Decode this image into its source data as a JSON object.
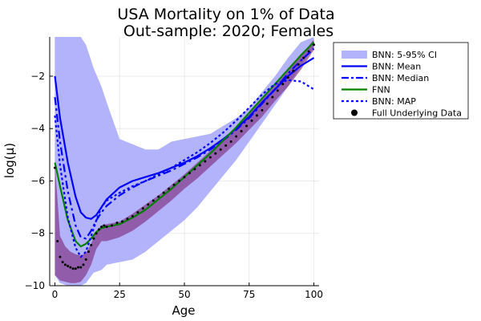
{
  "chart_data": {
    "type": "line",
    "title": "USA Mortality on 1% of Data",
    "subtitle": "Out-sample: 2020; Females",
    "xlabel": "Age",
    "ylabel": "log(μ)",
    "xlim": [
      -2,
      102
    ],
    "ylim": [
      -10,
      -0.5
    ],
    "xticks": [
      0,
      25,
      50,
      75,
      100
    ],
    "xtick_labels": [
      "0",
      "25",
      "50",
      "75",
      "100"
    ],
    "yticks": [
      -10,
      -8,
      -6,
      -4,
      -2
    ],
    "ytick_labels": [
      "−10",
      "−8",
      "−6",
      "−4",
      "−2"
    ],
    "grid": true,
    "legend_position": "outer-right",
    "colors": {
      "ci_fill": "#b3b3fc",
      "bnn": "#0000ff",
      "fnn": "#008000",
      "data_points": "#000000",
      "data_band": "#80307f"
    },
    "legend": [
      {
        "label": "BNN: 5-95% CI",
        "style": "band"
      },
      {
        "label": "BNN: Mean",
        "style": "solid"
      },
      {
        "label": "BNN: Median",
        "style": "dashdot"
      },
      {
        "label": "FNN",
        "style": "solid-green"
      },
      {
        "label": "BNN: MAP",
        "style": "dotted"
      },
      {
        "label": "Full Underlying Data",
        "style": "marker"
      }
    ],
    "ci_band": {
      "x": [
        0,
        2,
        5,
        8,
        10,
        12,
        15,
        18,
        20,
        25,
        30,
        35,
        40,
        45,
        50,
        55,
        60,
        65,
        70,
        75,
        80,
        85,
        90,
        95,
        100
      ],
      "lower": [
        -9.6,
        -9.9,
        -10,
        -10,
        -10,
        -9.9,
        -9.5,
        -9.4,
        -9.2,
        -9.1,
        -9,
        -8.7,
        -8.3,
        -7.9,
        -7.5,
        -7,
        -6.4,
        -5.8,
        -5.2,
        -4.5,
        -3.8,
        -3.1,
        -2.4,
        -1.6,
        -0.9
      ],
      "upper": [
        -0.5,
        -0.5,
        -0.5,
        -0.5,
        -0.5,
        -0.8,
        -1.7,
        -2.4,
        -3,
        -4.4,
        -4.6,
        -4.8,
        -4.8,
        -4.5,
        -4.4,
        -4.3,
        -4.2,
        -3.9,
        -3.6,
        -3.2,
        -2.6,
        -2,
        -1.3,
        -0.7,
        -0.5
      ]
    },
    "series": [
      {
        "name": "BNN: Mean",
        "x": [
          0,
          2,
          5,
          8,
          10,
          12,
          14,
          16,
          18,
          20,
          25,
          30,
          35,
          40,
          45,
          50,
          55,
          60,
          65,
          70,
          75,
          80,
          85,
          90,
          95,
          100
        ],
        "values": [
          -2,
          -3.6,
          -5.3,
          -6.6,
          -7.2,
          -7.4,
          -7.45,
          -7.3,
          -7,
          -6.7,
          -6.25,
          -6.0,
          -5.85,
          -5.7,
          -5.5,
          -5.3,
          -5.05,
          -4.75,
          -4.4,
          -4.0,
          -3.55,
          -3.0,
          -2.5,
          -2.0,
          -1.6,
          -1.3
        ]
      },
      {
        "name": "BNN: Median",
        "x": [
          0,
          2,
          5,
          8,
          10,
          12,
          14,
          16,
          18,
          20,
          25,
          30,
          35,
          40,
          45,
          50,
          55,
          60,
          65,
          70,
          75,
          80,
          85,
          90,
          95,
          100
        ],
        "values": [
          -2.8,
          -4.5,
          -6.4,
          -7.7,
          -8.15,
          -8.2,
          -7.9,
          -7.5,
          -7.2,
          -6.95,
          -6.55,
          -6.25,
          -6.0,
          -5.8,
          -5.6,
          -5.35,
          -5.1,
          -4.8,
          -4.45,
          -4.05,
          -3.6,
          -3.05,
          -2.5,
          -1.9,
          -1.4,
          -0.95
        ]
      },
      {
        "name": "FNN",
        "x": [
          0,
          2,
          5,
          8,
          10,
          12,
          14,
          16,
          18,
          20,
          25,
          30,
          35,
          40,
          45,
          50,
          55,
          60,
          65,
          70,
          75,
          80,
          85,
          90,
          95,
          100
        ],
        "values": [
          -5.3,
          -6.2,
          -7.5,
          -8.3,
          -8.5,
          -8.4,
          -8.2,
          -7.95,
          -7.8,
          -7.75,
          -7.65,
          -7.4,
          -7.1,
          -6.7,
          -6.3,
          -5.85,
          -5.4,
          -4.95,
          -4.45,
          -3.95,
          -3.4,
          -2.85,
          -2.3,
          -1.75,
          -1.2,
          -0.7
        ]
      },
      {
        "name": "BNN: MAP",
        "x": [
          0,
          2,
          5,
          8,
          10,
          12,
          14,
          16,
          18,
          20,
          25,
          30,
          35,
          40,
          45,
          50,
          55,
          60,
          65,
          70,
          75,
          80,
          85,
          90,
          95,
          100
        ],
        "values": [
          -3.5,
          -5.4,
          -7.4,
          -8.55,
          -8.9,
          -8.7,
          -8.1,
          -7.5,
          -7.0,
          -6.75,
          -6.45,
          -6.2,
          -6.0,
          -5.75,
          -5.5,
          -5.2,
          -4.9,
          -4.55,
          -4.15,
          -3.7,
          -3.2,
          -2.7,
          -2.3,
          -2.15,
          -2.2,
          -2.5
        ]
      },
      {
        "name": "Full Underlying Data",
        "x": [
          0,
          1,
          2,
          3,
          4,
          5,
          6,
          7,
          8,
          9,
          10,
          11,
          12,
          13,
          14,
          15,
          16,
          17,
          18,
          19,
          20,
          22,
          24,
          26,
          28,
          30,
          32,
          34,
          36,
          38,
          40,
          42,
          44,
          46,
          48,
          50,
          52,
          54,
          56,
          58,
          60,
          62,
          64,
          66,
          68,
          70,
          72,
          74,
          76,
          78,
          80,
          82,
          84,
          86,
          88,
          90,
          92,
          94,
          96,
          98,
          100
        ],
        "values": [
          -5.5,
          -8.3,
          -8.9,
          -9.1,
          -9.2,
          -9.25,
          -9.3,
          -9.35,
          -9.35,
          -9.3,
          -9.3,
          -9.2,
          -9.0,
          -8.7,
          -8.45,
          -8.2,
          -8.0,
          -7.85,
          -7.75,
          -7.7,
          -7.75,
          -7.7,
          -7.6,
          -7.55,
          -7.45,
          -7.35,
          -7.2,
          -7.05,
          -6.9,
          -6.75,
          -6.6,
          -6.45,
          -6.3,
          -6.15,
          -6.0,
          -5.85,
          -5.7,
          -5.55,
          -5.4,
          -5.25,
          -5.1,
          -4.95,
          -4.8,
          -4.65,
          -4.5,
          -4.3,
          -4.1,
          -3.9,
          -3.7,
          -3.5,
          -3.3,
          -3.05,
          -2.8,
          -2.55,
          -2.3,
          -2.05,
          -1.8,
          -1.55,
          -1.3,
          -1.05,
          -0.8
        ]
      }
    ],
    "data_band": {
      "x": [
        0,
        2,
        4,
        6,
        8,
        10,
        12,
        14,
        16,
        18,
        20,
        25,
        30,
        35,
        40,
        45,
        50,
        55,
        60,
        65,
        70,
        75,
        80,
        85,
        90,
        95,
        100
      ],
      "lower": [
        -9.6,
        -9.8,
        -9.85,
        -9.9,
        -9.9,
        -9.85,
        -9.6,
        -9.2,
        -8.6,
        -8.3,
        -8.3,
        -8.15,
        -7.9,
        -7.55,
        -7.15,
        -6.75,
        -6.3,
        -5.9,
        -5.45,
        -5.0,
        -4.55,
        -4.05,
        -3.55,
        -2.95,
        -2.4,
        -1.75,
        -1.0
      ],
      "upper": [
        -5.3,
        -8.1,
        -8.5,
        -8.7,
        -8.8,
        -8.85,
        -8.75,
        -8.4,
        -7.9,
        -7.7,
        -7.65,
        -7.55,
        -7.25,
        -6.9,
        -6.55,
        -6.15,
        -5.75,
        -5.3,
        -4.85,
        -4.4,
        -3.95,
        -3.45,
        -2.9,
        -2.35,
        -1.8,
        -1.2,
        -0.6
      ]
    }
  }
}
